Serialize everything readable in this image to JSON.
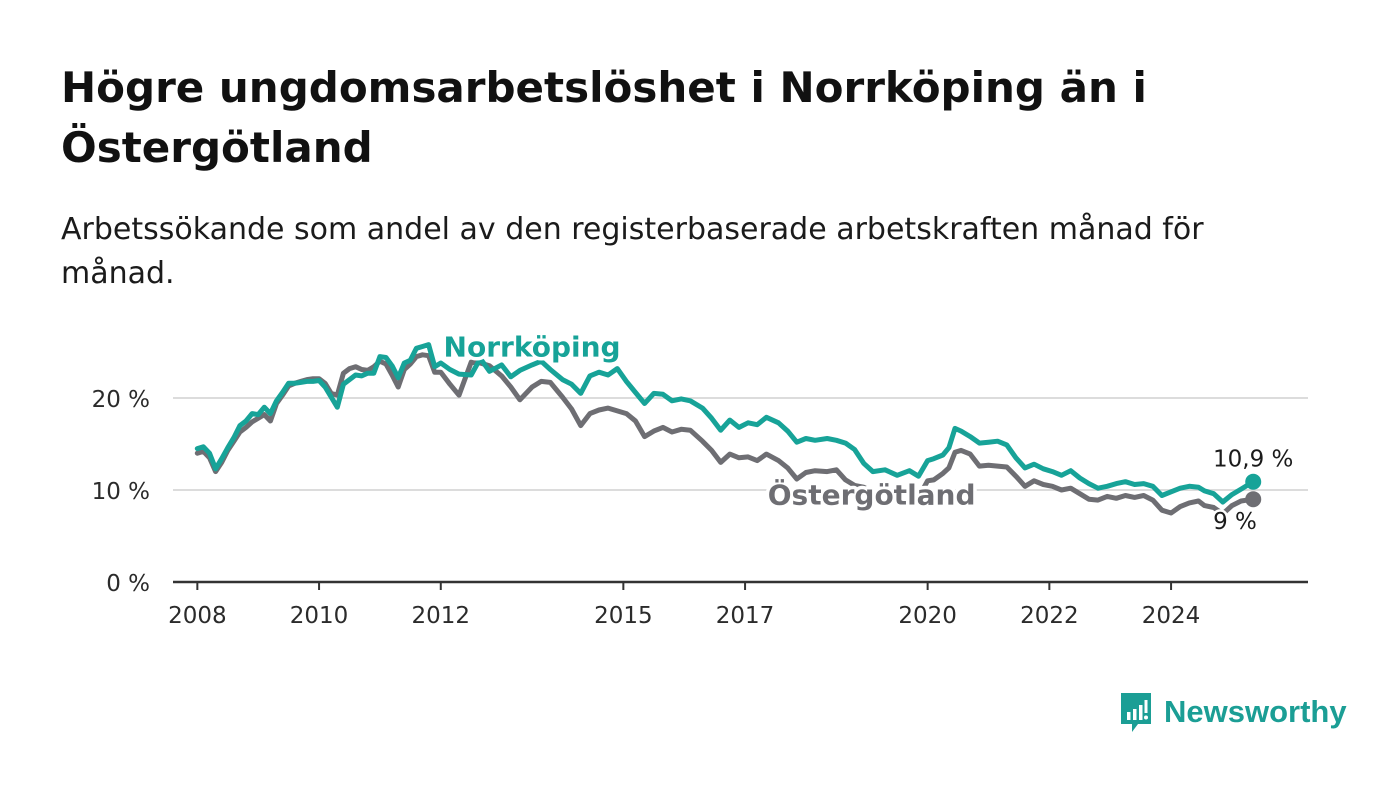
{
  "title": "Högre ungdomsarbetslöshet i Norrköping än i Östergötland",
  "subtitle": "Arbetssökande som andel av den registerbaserade arbetskraften månad för månad.",
  "brand": {
    "name": "Newsworthy"
  },
  "colors": {
    "norrkoping": "#17a398",
    "ostergotland": "#6e6e73",
    "grid": "#dcdcdc",
    "axis": "#333333",
    "brand": "#1b9e95"
  },
  "chart_data": {
    "type": "line",
    "title": "Högre ungdomsarbetslöshet i Norrköping än i Östergötland",
    "subtitle": "Arbetssökande som andel av den registerbaserade arbetskraften månad för månad.",
    "xlabel": "",
    "ylabel": "",
    "ylim": [
      0,
      25
    ],
    "xlim": [
      2007.6,
      2026.25
    ],
    "yticks": [
      0,
      10,
      20
    ],
    "ytick_labels": [
      "0 %",
      "10 %",
      "20 %"
    ],
    "xticks": [
      2008,
      2010,
      2012,
      2015,
      2017,
      2020,
      2022,
      2024
    ],
    "xtick_labels": [
      "2008",
      "2010",
      "2012",
      "2015",
      "2017",
      "2020",
      "2022",
      "2024"
    ],
    "grid": true,
    "legend": "inline labels",
    "end_labels": [
      "10,9 %",
      "9 %"
    ],
    "series": [
      {
        "name": "Norrköping",
        "key": "norrkoping",
        "points": [
          [
            2008.0,
            14.5
          ],
          [
            2008.1,
            14.7
          ],
          [
            2008.2,
            14.0
          ],
          [
            2008.3,
            12.3
          ],
          [
            2008.4,
            13.4
          ],
          [
            2008.5,
            14.6
          ],
          [
            2008.6,
            15.7
          ],
          [
            2008.7,
            17.0
          ],
          [
            2008.8,
            17.5
          ],
          [
            2008.9,
            18.3
          ],
          [
            2009.0,
            18.2
          ],
          [
            2009.1,
            19.0
          ],
          [
            2009.2,
            18.3
          ],
          [
            2009.3,
            19.7
          ],
          [
            2009.4,
            20.6
          ],
          [
            2009.5,
            21.6
          ],
          [
            2009.6,
            21.6
          ],
          [
            2009.7,
            21.7
          ],
          [
            2009.8,
            21.8
          ],
          [
            2009.9,
            21.8
          ],
          [
            2010.0,
            21.9
          ],
          [
            2010.1,
            21.2
          ],
          [
            2010.2,
            20.1
          ],
          [
            2010.3,
            19.0
          ],
          [
            2010.4,
            21.5
          ],
          [
            2010.5,
            22.0
          ],
          [
            2010.6,
            22.5
          ],
          [
            2010.7,
            22.4
          ],
          [
            2010.8,
            22.7
          ],
          [
            2010.9,
            22.7
          ],
          [
            2011.0,
            24.5
          ],
          [
            2011.1,
            24.4
          ],
          [
            2011.2,
            23.5
          ],
          [
            2011.3,
            22.2
          ],
          [
            2011.4,
            23.8
          ],
          [
            2011.5,
            24.1
          ],
          [
            2011.6,
            25.4
          ],
          [
            2011.7,
            25.6
          ],
          [
            2011.8,
            25.8
          ],
          [
            2011.9,
            23.4
          ],
          [
            2012.0,
            23.8
          ],
          [
            2012.15,
            23.1
          ],
          [
            2012.3,
            22.6
          ],
          [
            2012.5,
            22.5
          ],
          [
            2012.65,
            24.3
          ],
          [
            2012.8,
            22.9
          ],
          [
            2013.0,
            23.6
          ],
          [
            2013.15,
            22.3
          ],
          [
            2013.3,
            23.0
          ],
          [
            2013.5,
            23.6
          ],
          [
            2013.65,
            24.0
          ],
          [
            2013.8,
            23.1
          ],
          [
            2014.0,
            22.0
          ],
          [
            2014.15,
            21.5
          ],
          [
            2014.3,
            20.5
          ],
          [
            2014.45,
            22.4
          ],
          [
            2014.6,
            22.8
          ],
          [
            2014.75,
            22.5
          ],
          [
            2014.9,
            23.2
          ],
          [
            2015.05,
            21.8
          ],
          [
            2015.2,
            20.6
          ],
          [
            2015.35,
            19.4
          ],
          [
            2015.5,
            20.5
          ],
          [
            2015.65,
            20.4
          ],
          [
            2015.8,
            19.7
          ],
          [
            2015.95,
            19.9
          ],
          [
            2016.1,
            19.7
          ],
          [
            2016.3,
            18.9
          ],
          [
            2016.45,
            17.8
          ],
          [
            2016.6,
            16.5
          ],
          [
            2016.75,
            17.6
          ],
          [
            2016.9,
            16.8
          ],
          [
            2017.05,
            17.3
          ],
          [
            2017.2,
            17.1
          ],
          [
            2017.35,
            17.9
          ],
          [
            2017.55,
            17.3
          ],
          [
            2017.7,
            16.4
          ],
          [
            2017.85,
            15.2
          ],
          [
            2018.0,
            15.6
          ],
          [
            2018.15,
            15.4
          ],
          [
            2018.35,
            15.6
          ],
          [
            2018.5,
            15.4
          ],
          [
            2018.65,
            15.1
          ],
          [
            2018.8,
            14.4
          ],
          [
            2018.95,
            12.9
          ],
          [
            2019.1,
            12.0
          ],
          [
            2019.3,
            12.2
          ],
          [
            2019.5,
            11.6
          ],
          [
            2019.7,
            12.1
          ],
          [
            2019.85,
            11.5
          ],
          [
            2020.0,
            13.2
          ],
          [
            2020.1,
            13.4
          ],
          [
            2020.25,
            13.8
          ],
          [
            2020.35,
            14.6
          ],
          [
            2020.45,
            16.7
          ],
          [
            2020.55,
            16.4
          ],
          [
            2020.7,
            15.8
          ],
          [
            2020.85,
            15.1
          ],
          [
            2021.0,
            15.2
          ],
          [
            2021.15,
            15.3
          ],
          [
            2021.3,
            14.9
          ],
          [
            2021.45,
            13.5
          ],
          [
            2021.6,
            12.4
          ],
          [
            2021.75,
            12.8
          ],
          [
            2021.9,
            12.3
          ],
          [
            2022.05,
            12.0
          ],
          [
            2022.2,
            11.6
          ],
          [
            2022.35,
            12.1
          ],
          [
            2022.5,
            11.3
          ],
          [
            2022.65,
            10.7
          ],
          [
            2022.8,
            10.2
          ],
          [
            2022.95,
            10.4
          ],
          [
            2023.1,
            10.7
          ],
          [
            2023.25,
            10.9
          ],
          [
            2023.4,
            10.6
          ],
          [
            2023.55,
            10.7
          ],
          [
            2023.7,
            10.4
          ],
          [
            2023.85,
            9.4
          ],
          [
            2024.0,
            9.8
          ],
          [
            2024.15,
            10.2
          ],
          [
            2024.3,
            10.4
          ],
          [
            2024.45,
            10.3
          ],
          [
            2024.55,
            9.9
          ],
          [
            2024.7,
            9.6
          ],
          [
            2024.85,
            8.7
          ],
          [
            2025.0,
            9.5
          ],
          [
            2025.15,
            10.1
          ],
          [
            2025.35,
            10.9
          ]
        ]
      },
      {
        "name": "Östergötland",
        "key": "ostergotland",
        "points": [
          [
            2008.0,
            14.0
          ],
          [
            2008.1,
            14.2
          ],
          [
            2008.2,
            13.5
          ],
          [
            2008.3,
            12.0
          ],
          [
            2008.4,
            13.0
          ],
          [
            2008.5,
            14.3
          ],
          [
            2008.6,
            15.3
          ],
          [
            2008.7,
            16.3
          ],
          [
            2008.8,
            16.8
          ],
          [
            2008.9,
            17.4
          ],
          [
            2009.0,
            17.8
          ],
          [
            2009.1,
            18.2
          ],
          [
            2009.2,
            17.5
          ],
          [
            2009.3,
            19.4
          ],
          [
            2009.4,
            20.3
          ],
          [
            2009.5,
            21.3
          ],
          [
            2009.6,
            21.6
          ],
          [
            2009.7,
            21.8
          ],
          [
            2009.8,
            22.0
          ],
          [
            2009.9,
            22.1
          ],
          [
            2010.0,
            22.1
          ],
          [
            2010.1,
            21.6
          ],
          [
            2010.2,
            20.5
          ],
          [
            2010.3,
            20.3
          ],
          [
            2010.4,
            22.7
          ],
          [
            2010.5,
            23.2
          ],
          [
            2010.6,
            23.4
          ],
          [
            2010.7,
            23.1
          ],
          [
            2010.8,
            23.0
          ],
          [
            2010.9,
            23.4
          ],
          [
            2011.0,
            24.0
          ],
          [
            2011.1,
            23.7
          ],
          [
            2011.2,
            22.5
          ],
          [
            2011.3,
            21.2
          ],
          [
            2011.4,
            23.1
          ],
          [
            2011.5,
            23.7
          ],
          [
            2011.6,
            24.5
          ],
          [
            2011.7,
            24.7
          ],
          [
            2011.8,
            24.6
          ],
          [
            2011.9,
            22.8
          ],
          [
            2012.0,
            22.8
          ],
          [
            2012.15,
            21.5
          ],
          [
            2012.3,
            20.3
          ],
          [
            2012.5,
            23.9
          ],
          [
            2012.65,
            23.8
          ],
          [
            2012.8,
            23.5
          ],
          [
            2013.0,
            22.4
          ],
          [
            2013.15,
            21.2
          ],
          [
            2013.3,
            19.8
          ],
          [
            2013.5,
            21.2
          ],
          [
            2013.65,
            21.8
          ],
          [
            2013.8,
            21.7
          ],
          [
            2014.0,
            20.1
          ],
          [
            2014.15,
            18.8
          ],
          [
            2014.3,
            17.0
          ],
          [
            2014.45,
            18.3
          ],
          [
            2014.6,
            18.7
          ],
          [
            2014.75,
            18.9
          ],
          [
            2014.9,
            18.6
          ],
          [
            2015.05,
            18.3
          ],
          [
            2015.2,
            17.5
          ],
          [
            2015.35,
            15.8
          ],
          [
            2015.5,
            16.4
          ],
          [
            2015.65,
            16.8
          ],
          [
            2015.8,
            16.3
          ],
          [
            2015.95,
            16.6
          ],
          [
            2016.1,
            16.5
          ],
          [
            2016.3,
            15.3
          ],
          [
            2016.45,
            14.3
          ],
          [
            2016.6,
            13.0
          ],
          [
            2016.75,
            13.9
          ],
          [
            2016.9,
            13.5
          ],
          [
            2017.05,
            13.6
          ],
          [
            2017.2,
            13.2
          ],
          [
            2017.35,
            13.9
          ],
          [
            2017.55,
            13.2
          ],
          [
            2017.7,
            12.4
          ],
          [
            2017.85,
            11.2
          ],
          [
            2018.0,
            11.9
          ],
          [
            2018.15,
            12.1
          ],
          [
            2018.35,
            12.0
          ],
          [
            2018.5,
            12.2
          ],
          [
            2018.65,
            11.1
          ],
          [
            2018.8,
            10.5
          ],
          [
            2018.95,
            10.3
          ],
          [
            2019.1,
            9.8
          ],
          [
            2019.3,
            9.9
          ],
          [
            2019.5,
            9.6
          ],
          [
            2019.7,
            9.9
          ],
          [
            2019.85,
            9.2
          ],
          [
            2020.0,
            11.0
          ],
          [
            2020.1,
            11.1
          ],
          [
            2020.25,
            11.8
          ],
          [
            2020.35,
            12.4
          ],
          [
            2020.45,
            14.1
          ],
          [
            2020.55,
            14.3
          ],
          [
            2020.7,
            13.9
          ],
          [
            2020.85,
            12.6
          ],
          [
            2021.0,
            12.7
          ],
          [
            2021.15,
            12.6
          ],
          [
            2021.3,
            12.5
          ],
          [
            2021.45,
            11.5
          ],
          [
            2021.6,
            10.4
          ],
          [
            2021.75,
            11.0
          ],
          [
            2021.9,
            10.6
          ],
          [
            2022.05,
            10.4
          ],
          [
            2022.2,
            10.0
          ],
          [
            2022.35,
            10.2
          ],
          [
            2022.5,
            9.6
          ],
          [
            2022.65,
            9.0
          ],
          [
            2022.8,
            8.9
          ],
          [
            2022.95,
            9.3
          ],
          [
            2023.1,
            9.1
          ],
          [
            2023.25,
            9.4
          ],
          [
            2023.4,
            9.2
          ],
          [
            2023.55,
            9.4
          ],
          [
            2023.7,
            8.9
          ],
          [
            2023.85,
            7.8
          ],
          [
            2024.0,
            7.5
          ],
          [
            2024.15,
            8.2
          ],
          [
            2024.3,
            8.6
          ],
          [
            2024.45,
            8.8
          ],
          [
            2024.55,
            8.3
          ],
          [
            2024.7,
            8.1
          ],
          [
            2024.85,
            7.4
          ],
          [
            2025.0,
            8.3
          ],
          [
            2025.15,
            8.8
          ],
          [
            2025.35,
            9.0
          ]
        ]
      }
    ]
  }
}
